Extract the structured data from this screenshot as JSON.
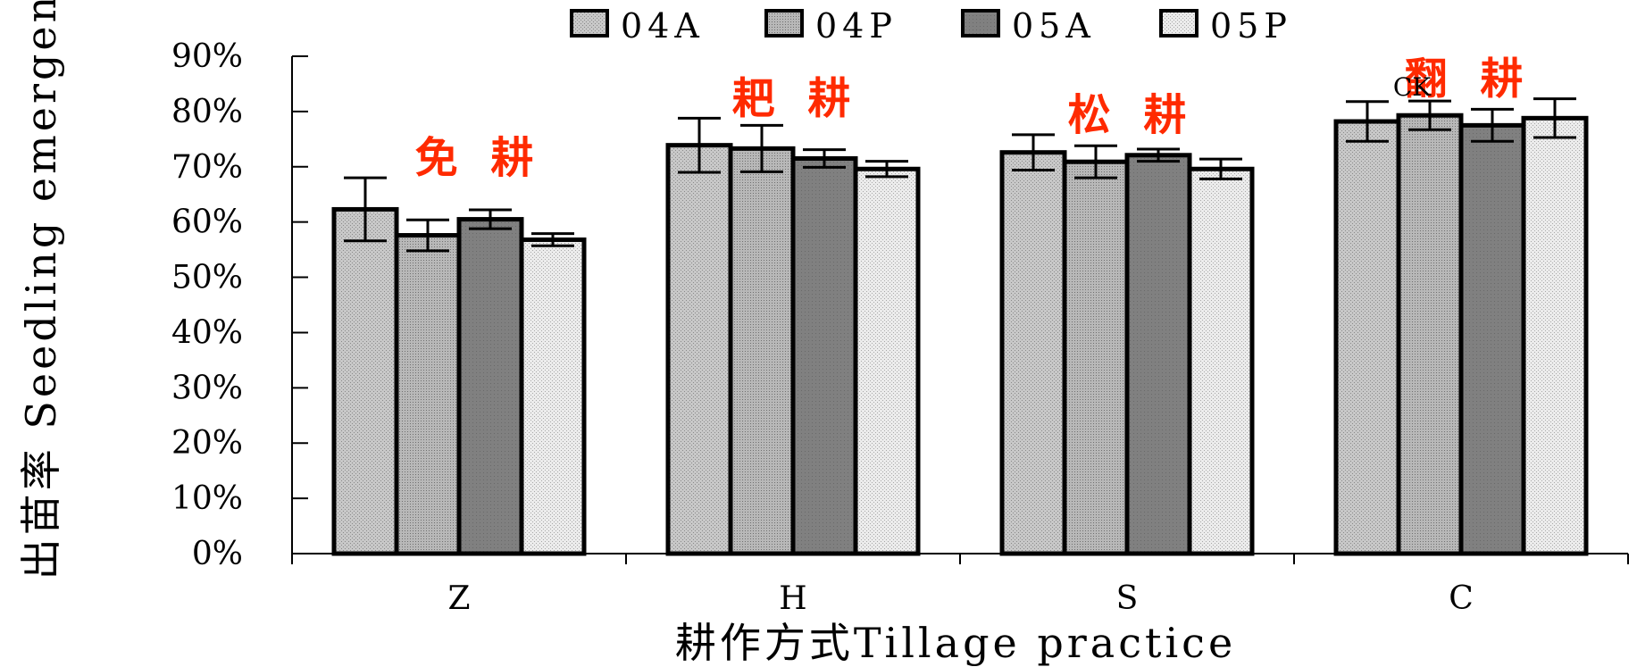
{
  "chart_data": {
    "type": "bar",
    "title": "",
    "xlabel": "耕作方式Tillage practice",
    "ylabel": "出苗率 Seedling emergence",
    "ylim": [
      0,
      90
    ],
    "yticks": [
      "0%",
      "10%",
      "20%",
      "30%",
      "40%",
      "50%",
      "60%",
      "70%",
      "80%",
      "90%"
    ],
    "categories": [
      "Z",
      "H",
      "S",
      "C"
    ],
    "group_labels": [
      "免 耕",
      "耙 耕",
      "松 耕",
      "翻 耕"
    ],
    "annotation": "CK",
    "legend_position": "top",
    "grid": false,
    "series": [
      {
        "name": "04A",
        "values": [
          62.3,
          73.9,
          72.6,
          78.2
        ],
        "errors": [
          5.7,
          4.9,
          3.2,
          3.6
        ],
        "color": "#c8c8c8"
      },
      {
        "name": "04P",
        "values": [
          57.6,
          73.3,
          70.9,
          79.3
        ],
        "errors": [
          2.8,
          4.2,
          2.9,
          2.6
        ],
        "color": "#b4b4b4"
      },
      {
        "name": "05A",
        "values": [
          60.5,
          71.5,
          72.1,
          77.5
        ],
        "errors": [
          1.7,
          1.6,
          1.1,
          2.9
        ],
        "color": "#808080"
      },
      {
        "name": "05P",
        "values": [
          56.8,
          69.6,
          69.6,
          78.8
        ],
        "errors": [
          1.1,
          1.4,
          1.8,
          3.5
        ],
        "color": "#e4e4e4"
      }
    ]
  }
}
